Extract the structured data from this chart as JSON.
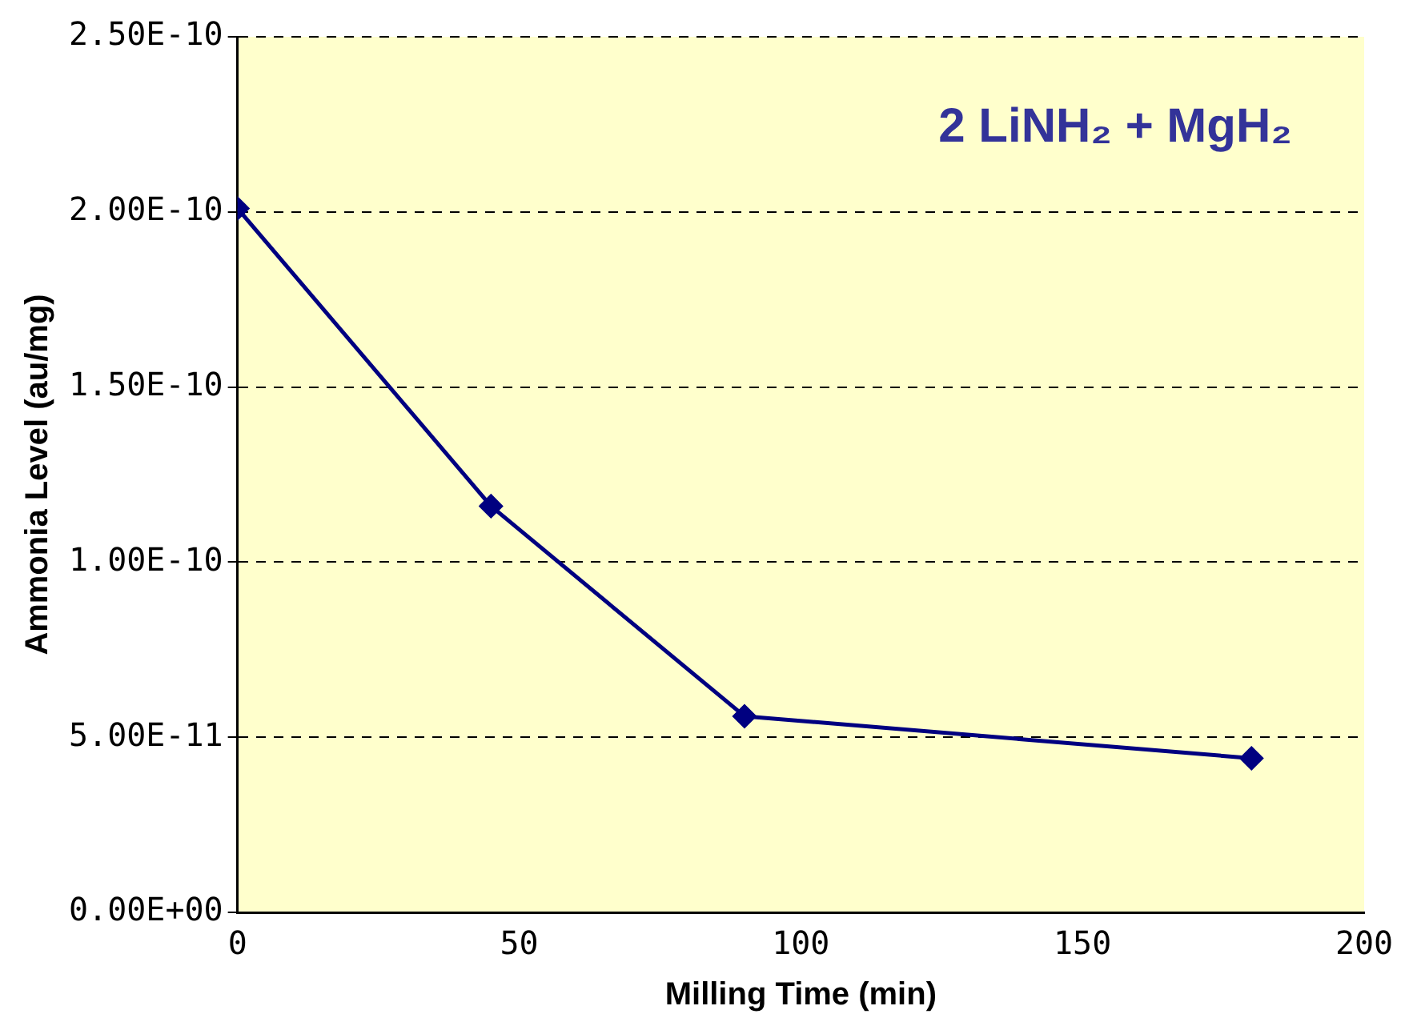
{
  "chart_data": {
    "type": "line",
    "annotations": [
      "2 LiNH₂ + MgH₂"
    ],
    "xlabel": "Milling Time (min)",
    "ylabel": "Ammonia Level (au/mg)",
    "x": [
      0,
      45,
      90,
      180
    ],
    "series": [
      {
        "color": "#000080",
        "values": [
          2.01e-10,
          1.16e-10,
          5.6e-11,
          4.4e-11
        ]
      }
    ],
    "xlim": [
      0,
      200
    ],
    "xticks": [
      0,
      50,
      100,
      150,
      200
    ],
    "ylim": [
      0,
      2.5e-10
    ],
    "yticks": [
      {
        "value": 0,
        "label": "0.00E+00"
      },
      {
        "value": 5e-11,
        "label": "5.00E-11"
      },
      {
        "value": 1e-10,
        "label": "1.00E-10"
      },
      {
        "value": 1.5e-10,
        "label": "1.50E-10"
      },
      {
        "value": 2e-10,
        "label": "2.00E-10"
      },
      {
        "value": 2.5e-10,
        "label": "2.50E-10"
      }
    ],
    "grid": "y",
    "marker": "diamond",
    "line_style": "solid",
    "legend": false
  }
}
